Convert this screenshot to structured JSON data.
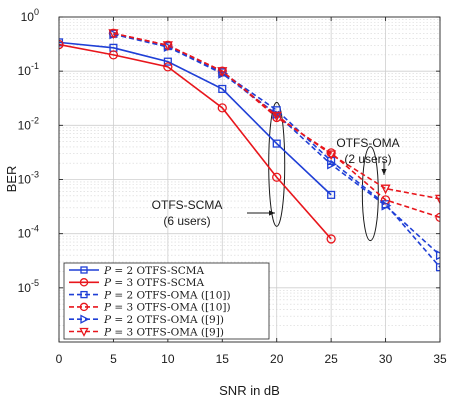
{
  "chart_data": {
    "type": "line",
    "title": "",
    "xlabel": "SNR in dB",
    "ylabel": "BER",
    "xlim": [
      0,
      35
    ],
    "ylim": [
      1e-06,
      1
    ],
    "yscale": "log",
    "grid": true,
    "legend_position": "bottom-left",
    "x_ticks": [
      "0",
      "5",
      "10",
      "15",
      "20",
      "25",
      "30",
      "35"
    ],
    "y_ticks": [
      {
        "base": "10",
        "exp": "0",
        "value": 1
      },
      {
        "base": "10",
        "exp": "-1",
        "value": 0.1
      },
      {
        "base": "10",
        "exp": "-2",
        "value": 0.01
      },
      {
        "base": "10",
        "exp": "-3",
        "value": 0.001
      },
      {
        "base": "10",
        "exp": "-4",
        "value": 0.0001
      },
      {
        "base": "10",
        "exp": "-5",
        "value": 1e-05
      }
    ],
    "series": [
      {
        "name": "= 2 OTFS-SCMA",
        "x": [
          0,
          5,
          10,
          15,
          20,
          25
        ],
        "values": [
          0.34,
          0.27,
          0.15,
          0.047,
          0.0046,
          0.00052
        ],
        "color": "#1f3fd6",
        "dash": "solid",
        "marker": "square"
      },
      {
        "name": "= 3 OTFS-SCMA",
        "x": [
          0,
          5,
          10,
          15,
          20,
          25
        ],
        "values": [
          0.31,
          0.2,
          0.12,
          0.021,
          0.0011,
          8e-05
        ],
        "color": "#e8161c",
        "dash": "solid",
        "marker": "circle"
      },
      {
        "name": "= 2 OTFS-OMA ([10])",
        "x": [
          5,
          10,
          15,
          20,
          25,
          30,
          35
        ],
        "values": [
          0.49,
          0.29,
          0.095,
          0.019,
          0.0022,
          0.00035,
          2.4e-05
        ],
        "color": "#1f3fd6",
        "dash": "dashed",
        "marker": "square"
      },
      {
        "name": "= 3 OTFS-OMA ([10])",
        "x": [
          5,
          10,
          15,
          20,
          25,
          30,
          35
        ],
        "values": [
          0.5,
          0.3,
          0.1,
          0.014,
          0.0031,
          0.00042,
          0.0002
        ],
        "color": "#e8161c",
        "dash": "dashed",
        "marker": "circle"
      },
      {
        "name": "= 2 OTFS-OMA ([9])",
        "x": [
          5,
          10,
          15,
          20,
          25,
          30,
          35
        ],
        "values": [
          0.48,
          0.28,
          0.09,
          0.016,
          0.0019,
          0.00033,
          4e-05
        ],
        "color": "#1f3fd6",
        "dash": "dashed",
        "marker": "triangle-right"
      },
      {
        "name": "= 3 OTFS-OMA ([9])",
        "x": [
          5,
          10,
          15,
          20,
          25,
          30,
          35
        ],
        "values": [
          0.5,
          0.3,
          0.1,
          0.015,
          0.0029,
          0.00068,
          0.00044
        ],
        "color": "#e8161c",
        "dash": "dashed",
        "marker": "triangle-down"
      }
    ],
    "annotations": [
      {
        "lines": [
          "OTFS-SCMA",
          "(6 users)"
        ]
      },
      {
        "lines": [
          "OTFS-OMA",
          "(2 users)"
        ]
      }
    ],
    "legend_prefix_var": "P",
    "legend_prefix_eq": "= "
  }
}
